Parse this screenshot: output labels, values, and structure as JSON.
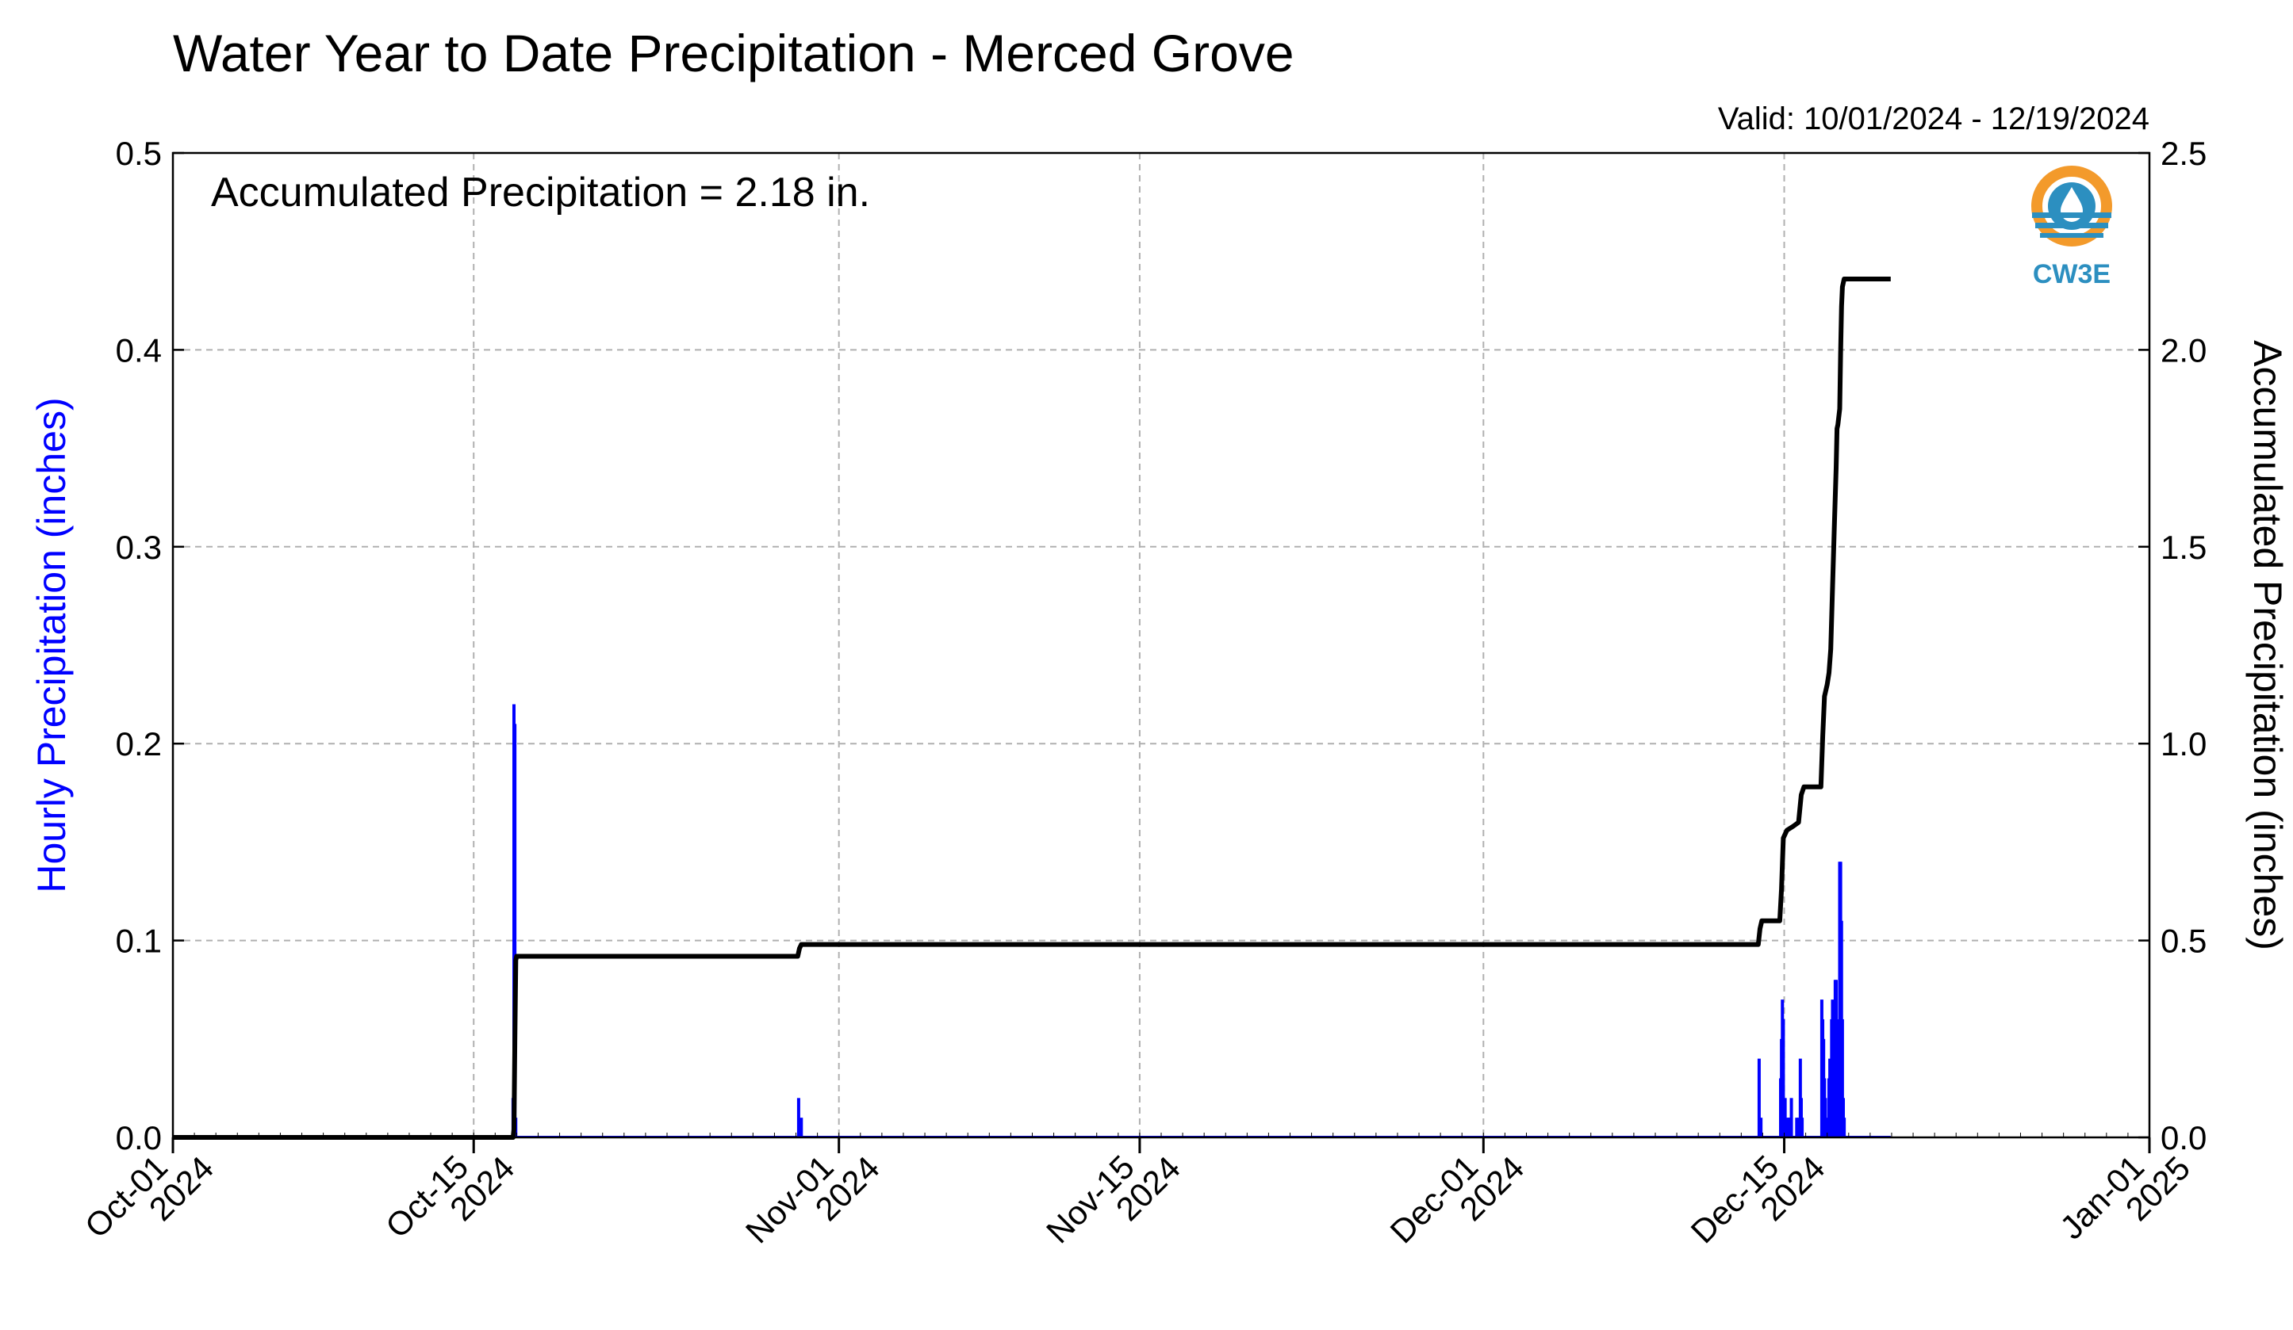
{
  "chart_data": {
    "type": "bar",
    "title": "Water Year to Date Precipitation - Merced Grove",
    "valid_range": "Valid: 10/01/2024 - 12/19/2024",
    "annotation": "Accumulated Precipitation = 2.18 in.",
    "logo_text": "CW3E",
    "grid": true,
    "x_axis": {
      "type": "date",
      "range": [
        "2024-10-01",
        "2025-01-01"
      ],
      "ticks": [
        {
          "date": "2024-10-01",
          "line1": "Oct-01",
          "line2": "2024"
        },
        {
          "date": "2024-10-15",
          "line1": "Oct-15",
          "line2": "2024"
        },
        {
          "date": "2024-11-01",
          "line1": "Nov-01",
          "line2": "2024"
        },
        {
          "date": "2024-11-15",
          "line1": "Nov-15",
          "line2": "2024"
        },
        {
          "date": "2024-12-01",
          "line1": "Dec-01",
          "line2": "2024"
        },
        {
          "date": "2024-12-15",
          "line1": "Dec-15",
          "line2": "2024"
        },
        {
          "date": "2025-01-01",
          "line1": "Jan-01",
          "line2": "2025"
        }
      ]
    },
    "y_left": {
      "label": "Hourly Precipitation (inches)",
      "range": [
        0,
        0.5
      ],
      "ticks": [
        "0.0",
        "0.1",
        "0.2",
        "0.3",
        "0.4",
        "0.5"
      ],
      "color": "#0000ff"
    },
    "y_right": {
      "label": "Accumulated Precipitation (inches)",
      "range": [
        0,
        2.5
      ],
      "ticks": [
        "0.0",
        "0.5",
        "1.0",
        "1.5",
        "2.0",
        "2.5"
      ],
      "color": "#000000"
    },
    "series": [
      {
        "name": "Hourly Precipitation",
        "axis": "left",
        "kind": "bar",
        "color": "#0000ff",
        "points": [
          [
            "2024-10-16T20:00",
            0.02
          ],
          [
            "2024-10-16T21:00",
            0.22
          ],
          [
            "2024-10-16T22:00",
            0.21
          ],
          [
            "2024-10-16T23:00",
            0.01
          ],
          [
            "2024-10-30T03:00",
            0.02
          ],
          [
            "2024-10-30T06:00",
            0.01
          ],
          [
            "2024-12-13T20:00",
            0.04
          ],
          [
            "2024-12-13T22:00",
            0.01
          ],
          [
            "2024-12-14T20:00",
            0.03
          ],
          [
            "2024-12-14T21:00",
            0.05
          ],
          [
            "2024-12-14T22:00",
            0.07
          ],
          [
            "2024-12-14T23:00",
            0.06
          ],
          [
            "2024-12-15T01:00",
            0.02
          ],
          [
            "2024-12-15T03:00",
            0.01
          ],
          [
            "2024-12-15T05:00",
            0.01
          ],
          [
            "2024-12-15T06:00",
            0.01
          ],
          [
            "2024-12-15T08:00",
            0.02
          ],
          [
            "2024-12-15T14:00",
            0.01
          ],
          [
            "2024-12-15T16:00",
            0.01
          ],
          [
            "2024-12-15T18:00",
            0.04
          ],
          [
            "2024-12-15T19:00",
            0.02
          ],
          [
            "2024-12-15T20:00",
            0.01
          ],
          [
            "2024-12-16T18:00",
            0.07
          ],
          [
            "2024-12-16T19:00",
            0.06
          ],
          [
            "2024-12-16T20:00",
            0.05
          ],
          [
            "2024-12-16T21:00",
            0.03
          ],
          [
            "2024-12-16T22:00",
            0.02
          ],
          [
            "2024-12-17T00:00",
            0.01
          ],
          [
            "2024-12-17T02:00",
            0.03
          ],
          [
            "2024-12-17T03:00",
            0.04
          ],
          [
            "2024-12-17T05:00",
            0.06
          ],
          [
            "2024-12-17T06:00",
            0.07
          ],
          [
            "2024-12-17T08:00",
            0.05
          ],
          [
            "2024-12-17T09:00",
            0.08
          ],
          [
            "2024-12-17T10:00",
            0.08
          ],
          [
            "2024-12-17T12:00",
            0.06
          ],
          [
            "2024-12-17T14:00",
            0.14
          ],
          [
            "2024-12-17T15:00",
            0.14
          ],
          [
            "2024-12-17T16:00",
            0.11
          ],
          [
            "2024-12-17T17:00",
            0.06
          ],
          [
            "2024-12-17T18:00",
            0.02
          ],
          [
            "2024-12-17T19:00",
            0.01
          ]
        ]
      },
      {
        "name": "Accumulated Precipitation",
        "axis": "right",
        "kind": "line",
        "color": "#000000",
        "points": [
          [
            "2024-10-01T00:00",
            0.0
          ],
          [
            "2024-10-16T20:00",
            0.0
          ],
          [
            "2024-10-16T21:00",
            0.02
          ],
          [
            "2024-10-16T22:00",
            0.24
          ],
          [
            "2024-10-16T23:00",
            0.45
          ],
          [
            "2024-10-17T00:00",
            0.46
          ],
          [
            "2024-10-30T02:00",
            0.46
          ],
          [
            "2024-10-30T04:00",
            0.48
          ],
          [
            "2024-10-30T06:00",
            0.49
          ],
          [
            "2024-12-13T19:00",
            0.49
          ],
          [
            "2024-12-13T21:00",
            0.53
          ],
          [
            "2024-12-13T23:00",
            0.55
          ],
          [
            "2024-12-14T19:00",
            0.55
          ],
          [
            "2024-12-14T21:00",
            0.63
          ],
          [
            "2024-12-14T23:00",
            0.76
          ],
          [
            "2024-12-15T03:00",
            0.78
          ],
          [
            "2024-12-15T10:00",
            0.79
          ],
          [
            "2024-12-15T16:00",
            0.8
          ],
          [
            "2024-12-15T19:00",
            0.87
          ],
          [
            "2024-12-15T22:00",
            0.89
          ],
          [
            "2024-12-16T17:00",
            0.89
          ],
          [
            "2024-12-16T19:00",
            1.02
          ],
          [
            "2024-12-16T21:00",
            1.12
          ],
          [
            "2024-12-17T00:00",
            1.15
          ],
          [
            "2024-12-17T02:00",
            1.18
          ],
          [
            "2024-12-17T04:00",
            1.24
          ],
          [
            "2024-12-17T06:00",
            1.4
          ],
          [
            "2024-12-17T08:00",
            1.55
          ],
          [
            "2024-12-17T10:00",
            1.7
          ],
          [
            "2024-12-17T11:00",
            1.8
          ],
          [
            "2024-12-17T12:00",
            1.81
          ],
          [
            "2024-12-17T14:00",
            1.85
          ],
          [
            "2024-12-17T15:00",
            1.99
          ],
          [
            "2024-12-17T16:00",
            2.11
          ],
          [
            "2024-12-17T17:00",
            2.16
          ],
          [
            "2024-12-17T19:00",
            2.18
          ],
          [
            "2024-12-19T23:00",
            2.18
          ]
        ]
      }
    ]
  }
}
